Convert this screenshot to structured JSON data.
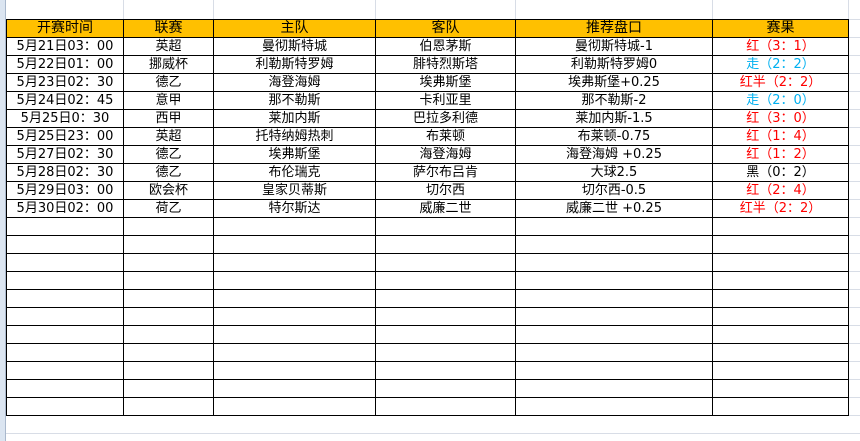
{
  "headers": [
    "开赛时间",
    "联赛",
    "主队",
    "客队",
    "推荐盘口",
    "赛果"
  ],
  "colors": {
    "header_bg": "#ffc000",
    "win": "#ff0000",
    "push": "#00b0f0",
    "loss": "#000000"
  },
  "rows": [
    {
      "time": "5月21日03：00",
      "league": "英超",
      "home": "曼彻斯特城",
      "away": "伯恩茅斯",
      "pick": "曼彻斯特城-1",
      "result": "红（3：1）",
      "status": "red"
    },
    {
      "time": "5月22日01：00",
      "league": "挪威杯",
      "home": "利勒斯特罗姆",
      "away": "腓特烈斯塔",
      "pick": "利勒斯特罗姆0",
      "result": "走（2：2）",
      "status": "blue"
    },
    {
      "time": "5月23日02：30",
      "league": "德乙",
      "home": "海登海姆",
      "away": "埃弗斯堡",
      "pick": "埃弗斯堡+0.25",
      "result": "红半（2：2）",
      "status": "red"
    },
    {
      "time": "5月24日02：45",
      "league": "意甲",
      "home": "那不勒斯",
      "away": "卡利亚里",
      "pick": "那不勒斯-2",
      "result": "走（2：0）",
      "status": "blue"
    },
    {
      "time": "5月25日0：30",
      "league": "西甲",
      "home": "莱加内斯",
      "away": "巴拉多利德",
      "pick": "莱加内斯-1.5",
      "result": "红（3：0）",
      "status": "red"
    },
    {
      "time": "5月25日23：00",
      "league": "英超",
      "home": "托特纳姆热刺",
      "away": "布莱顿",
      "pick": "布莱顿-0.75",
      "result": "红（1：4）",
      "status": "red"
    },
    {
      "time": "5月27日02：30",
      "league": "德乙",
      "home": "埃弗斯堡",
      "away": "海登海姆",
      "pick": "海登海姆 +0.25",
      "result": "红（1：2）",
      "status": "red"
    },
    {
      "time": "5月28日02：30",
      "league": "德乙",
      "home": "布伦瑞克",
      "away": "萨尔布吕肯",
      "pick": "大球2.5",
      "result": "黑（0：2）",
      "status": "black"
    },
    {
      "time": "5月29日03：00",
      "league": "欧会杯",
      "home": "皇家贝蒂斯",
      "away": "切尔西",
      "pick": "切尔西-0.5",
      "result": "红（2：4）",
      "status": "red"
    },
    {
      "time": "5月30日02：00",
      "league": "荷乙",
      "home": "特尔斯达",
      "away": "威廉二世",
      "pick": "威廉二世 +0.25",
      "result": "红半（2：2）",
      "status": "red"
    }
  ]
}
